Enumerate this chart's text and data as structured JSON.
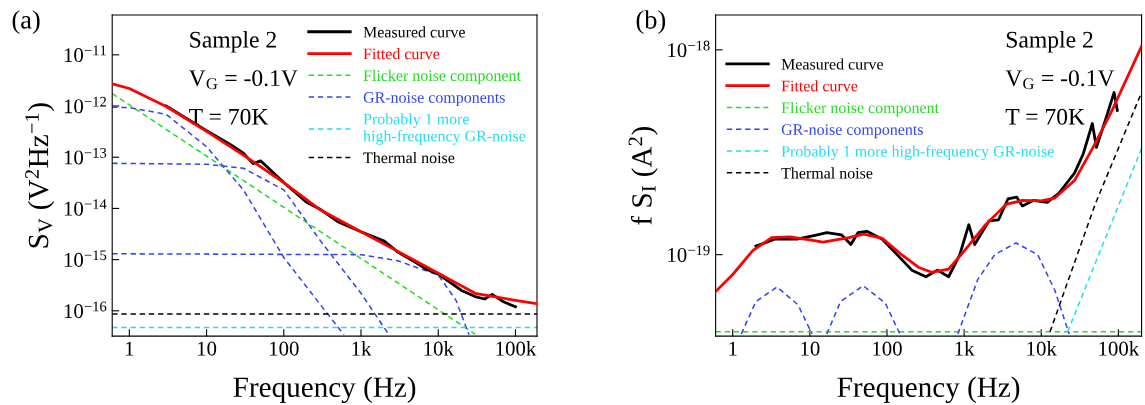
{
  "chart_data": [
    {
      "type": "line",
      "title": "(a)",
      "xlabel": "Frequency (Hz)",
      "ylabel": "S$_{V}$ (V$^{2}$Hz$^{−1}$)",
      "log": "xy",
      "grid": false,
      "legend": "top right",
      "xlim": [
        0.6,
        190000
      ],
      "ylim": [
        3.2e-17,
        6e-11
      ],
      "xticks": [
        1,
        10,
        100,
        {
          "value": 1000,
          "label": "1k"
        },
        {
          "value": 10000,
          "label": "10k"
        },
        {
          "value": 100000,
          "label": "100k"
        }
      ],
      "yticks": [
        {
          "value": 1e-11,
          "label": "10$^{−11}$"
        },
        {
          "value": 1e-12,
          "label": "10$^{−12}$"
        },
        {
          "value": 1e-13,
          "label": "10$^{−13}$"
        },
        {
          "value": 1e-14,
          "label": "10$^{−14}$"
        },
        {
          "value": 1e-15,
          "label": "10$^{−15}$"
        },
        {
          "value": 1e-16,
          "label": "10$^{−16}$"
        }
      ],
      "annotations": [
        "Sample 2",
        "V$_{G}$ = -0.1V",
        "T = 70K"
      ],
      "series": [
        {
          "name": "Measured curve",
          "color": "#000000",
          "line_style": "solid",
          "x": [
            3,
            10,
            20,
            30,
            40,
            50,
            100,
            200,
            300,
            500,
            1000,
            2000,
            3000,
            5000,
            7000,
            10000,
            20000,
            30000,
            40000,
            50000,
            70000,
            100000
          ],
          "values": [
            1e-12,
            3.3e-13,
            1.8e-13,
            1.2e-13,
            7.5e-14,
            8.5e-14,
            3.2e-14,
            1.3e-14,
            9.5e-15,
            5.5e-15,
            3.5e-15,
            2.3e-15,
            1.4e-15,
            9e-16,
            6.5e-16,
            5.2e-16,
            2.5e-16,
            1.9e-16,
            1.7e-16,
            2.1e-16,
            1.5e-16,
            1.2e-16
          ]
        },
        {
          "name": "Fitted curve",
          "color": "#ff0000",
          "line_style": "solid",
          "x": [
            0.6,
            1,
            3,
            10,
            30,
            100,
            300,
            1000,
            3000,
            10000,
            30000,
            100000,
            190000
          ],
          "values": [
            2.7e-12,
            2.2e-12,
            9.8e-13,
            3.2e-13,
            1.1e-13,
            3.2e-14,
            9.3e-15,
            3.5e-15,
            1.45e-15,
            5.4e-16,
            2.2e-16,
            1.6e-16,
            1.38e-16
          ]
        },
        {
          "name": "Flicker noise component",
          "color": "#22dd22",
          "line_style": "dashed",
          "x": [
            0.6,
            1,
            10,
            100,
            1000,
            10000,
            30000
          ],
          "values": [
            1.75e-12,
            1.05e-12,
            1.05e-13,
            1.05e-14,
            1.05e-15,
            1.05e-16,
            3.5e-17
          ]
        },
        {
          "name": "GR-noise components",
          "color": "#3344ee",
          "line_style": "dashed",
          "x": [
            0.6,
            1,
            3,
            10,
            30,
            100,
            300,
            600
          ],
          "values": [
            9.5e-13,
            9.3e-13,
            6.9e-13,
            1.6e-13,
            2.3e-14,
            1.1e-15,
            1.3e-16,
            3.4e-17
          ]
        },
        {
          "color": "#3344ee",
          "line_style": "dashed",
          "x": [
            0.6,
            10,
            30,
            100,
            300,
            1000,
            2300
          ],
          "values": [
            7.6e-14,
            7.3e-14,
            6.1e-14,
            2.3e-14,
            2.3e-15,
            2.2e-16,
            3.4e-17
          ]
        },
        {
          "color": "#3344ee",
          "line_style": "dashed",
          "x": [
            0.6,
            1000,
            3000,
            10000,
            17000,
            25000
          ],
          "values": [
            1.3e-15,
            1.25e-15,
            9.5e-16,
            5e-16,
            1.6e-16,
            3.4e-17
          ]
        },
        {
          "name": "Probably 1 more\nhigh-frequency GR-noise",
          "color": "#22ddee",
          "line_style": "dashed",
          "x": [
            0.6,
            190000
          ],
          "values": [
            4.7e-17,
            4.7e-17
          ]
        },
        {
          "name": "Thermal noise",
          "color": "#000000",
          "line_style": "dashed",
          "x": [
            0.6,
            190000
          ],
          "values": [
            8.7e-17,
            8.7e-17
          ]
        }
      ]
    },
    {
      "type": "line",
      "title": "(b)",
      "xlabel": "Frequency (Hz)",
      "ylabel": "f S$_{I}$ (A$^{2}$)",
      "log": "xy",
      "grid": false,
      "legend": "top left",
      "xlim": [
        0.6,
        200000
      ],
      "ylim": [
        4e-20,
        1.48e-18
      ],
      "xticks": [
        1,
        10,
        100,
        {
          "value": 1000,
          "label": "1k"
        },
        {
          "value": 10000,
          "label": "10k"
        },
        {
          "value": 100000,
          "label": "100k"
        }
      ],
      "yticks": [
        {
          "value": 1e-18,
          "label": "10$^{−18}$"
        },
        {
          "value": 1e-19,
          "label": "10$^{−19}$"
        }
      ],
      "annotations": [
        "Sample 2",
        "V$_{G}$ = -0.1V",
        "T = 70K"
      ],
      "series": [
        {
          "name": "Measured curve",
          "color": "#000000",
          "line_style": "solid",
          "x": [
            2,
            3.5,
            6.8,
            11.3,
            16.6,
            25.7,
            34,
            42,
            55,
            87,
            135,
            210,
            320,
            450,
            630,
            880,
            1150,
            1370,
            2100,
            2800,
            3700,
            4800,
            5700,
            7900,
            12000,
            17000,
            27000,
            35000,
            46000,
            52000,
            70000,
            88000,
            97000
          ],
          "values": [
            1.1e-19,
            1.19e-19,
            1.19e-19,
            1.24e-19,
            1.28e-19,
            1.25e-19,
            1.12e-19,
            1.28e-19,
            1.3e-19,
            1.19e-19,
            1e-19,
            8.4e-20,
            7.8e-20,
            8.4e-20,
            7.8e-20,
            1e-19,
            1.4e-19,
            1.12e-19,
            1.46e-19,
            1.48e-19,
            1.87e-19,
            1.91e-19,
            1.73e-19,
            1.84e-19,
            1.8e-19,
            2e-19,
            2.5e-19,
            3.1e-19,
            4.37e-19,
            3.34e-19,
            4.7e-19,
            6.2e-19,
            5.06e-19
          ]
        },
        {
          "name": "Fitted curve",
          "color": "#ff0000",
          "line_style": "solid",
          "x": [
            0.6,
            1,
            1.83,
            3.2,
            5.5,
            10,
            14.8,
            32,
            50,
            87,
            150,
            260,
            380,
            630,
            1000,
            1900,
            3500,
            5700,
            10000,
            15000,
            27000,
            47000,
            83000,
            100000,
            200000
          ],
          "values": [
            6.6e-20,
            8e-20,
            1.05e-19,
            1.21e-19,
            1.22e-19,
            1.18e-19,
            1.15e-19,
            1.21e-19,
            1.26e-19,
            1.2e-19,
            1.01e-19,
            8.65e-20,
            8.2e-20,
            8.5e-20,
            1.04e-19,
            1.4e-19,
            1.76e-19,
            1.84e-19,
            1.83e-19,
            1.89e-19,
            2.3e-19,
            3.34e-19,
            5.06e-19,
            5.9e-19,
            1.04e-18
          ]
        },
        {
          "name": "Flicker noise component",
          "color": "#22dd22",
          "line_style": "dashed",
          "x": [
            0.6,
            200000
          ],
          "values": [
            4.2e-20,
            4.2e-20
          ]
        },
        {
          "name": "GR-noise components",
          "color": "#3344ee",
          "line_style": "dashed",
          "x": [
            1.29,
            2,
            3.75,
            7,
            10.7
          ],
          "values": [
            4.1e-20,
            5.9e-20,
            6.95e-20,
            5.7e-20,
            4.1e-20
          ]
        },
        {
          "color": "#3344ee",
          "line_style": "dashed",
          "x": [
            16.6,
            25,
            49,
            95,
            147
          ],
          "values": [
            4.1e-20,
            5.9e-20,
            7.06e-20,
            5.8e-20,
            4.1e-20
          ]
        },
        {
          "color": "#3344ee",
          "line_style": "dashed",
          "x": [
            830,
            1500,
            2500,
            4700,
            9000,
            15000,
            23000
          ],
          "values": [
            4.1e-20,
            7.55e-20,
            1e-19,
            1.14e-19,
            1e-19,
            6.7e-20,
            4.1e-20
          ]
        },
        {
          "name": "Probably 1 more high-frequency GR-noise",
          "color": "#22ddee",
          "line_style": "dashed",
          "x": [
            22000,
            200000
          ],
          "values": [
            4.2e-20,
            3.3e-19
          ]
        },
        {
          "name": "Thermal noise",
          "color": "#000000",
          "line_style": "dashed",
          "x": [
            13000,
            50000,
            200000
          ],
          "values": [
            4.2e-20,
            1.76e-19,
            6.2e-19
          ]
        }
      ]
    }
  ]
}
